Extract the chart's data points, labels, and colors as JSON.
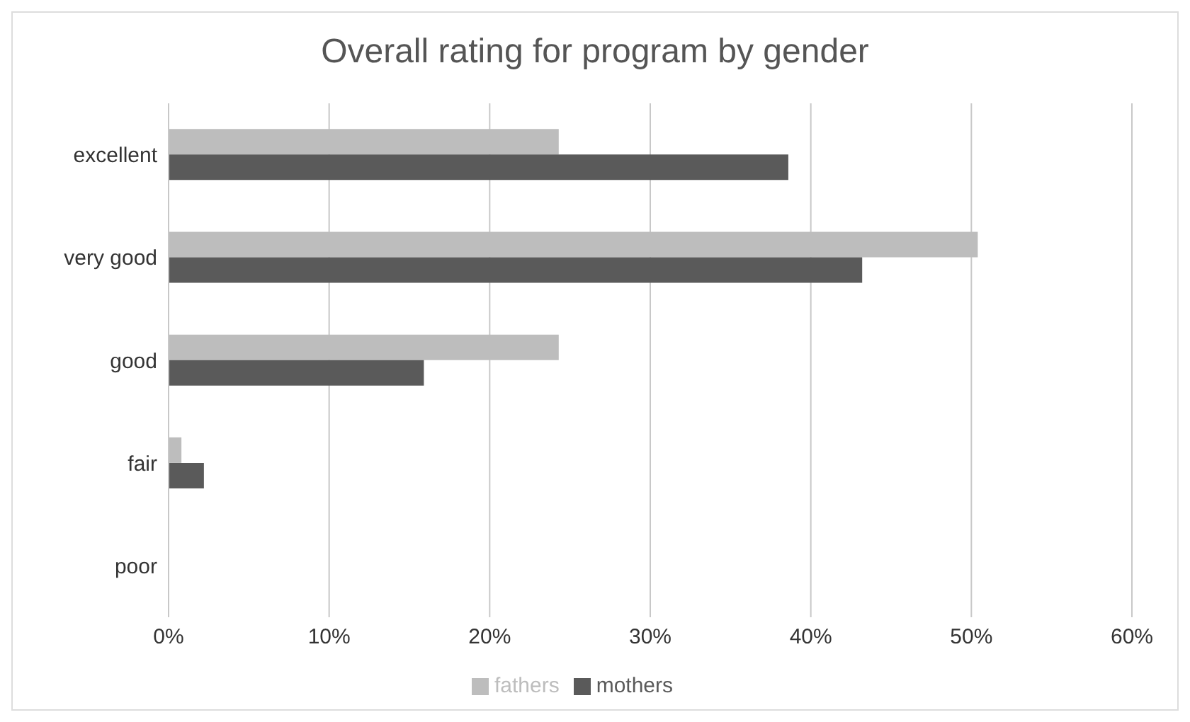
{
  "chart_data": {
    "type": "bar",
    "orientation": "horizontal",
    "title": "Overall rating for program by gender",
    "categories": [
      "excellent",
      "very good",
      "good",
      "fair",
      "poor"
    ],
    "series": [
      {
        "name": "fathers",
        "color": "#bdbdbd",
        "values": [
          24.3,
          50.4,
          24.3,
          0.8,
          0
        ]
      },
      {
        "name": "mothers",
        "color": "#5a5a5a",
        "values": [
          38.6,
          43.2,
          15.9,
          2.2,
          0
        ]
      }
    ],
    "xlim": [
      0,
      60
    ],
    "xticks": [
      {
        "value": 0,
        "label": "0%"
      },
      {
        "value": 10,
        "label": "10%"
      },
      {
        "value": 20,
        "label": "20%"
      },
      {
        "value": 30,
        "label": "30%"
      },
      {
        "value": 40,
        "label": "40%"
      },
      {
        "value": 50,
        "label": "50%"
      },
      {
        "value": 60,
        "label": "60%"
      }
    ],
    "grid": "x",
    "legend": "bottom"
  }
}
